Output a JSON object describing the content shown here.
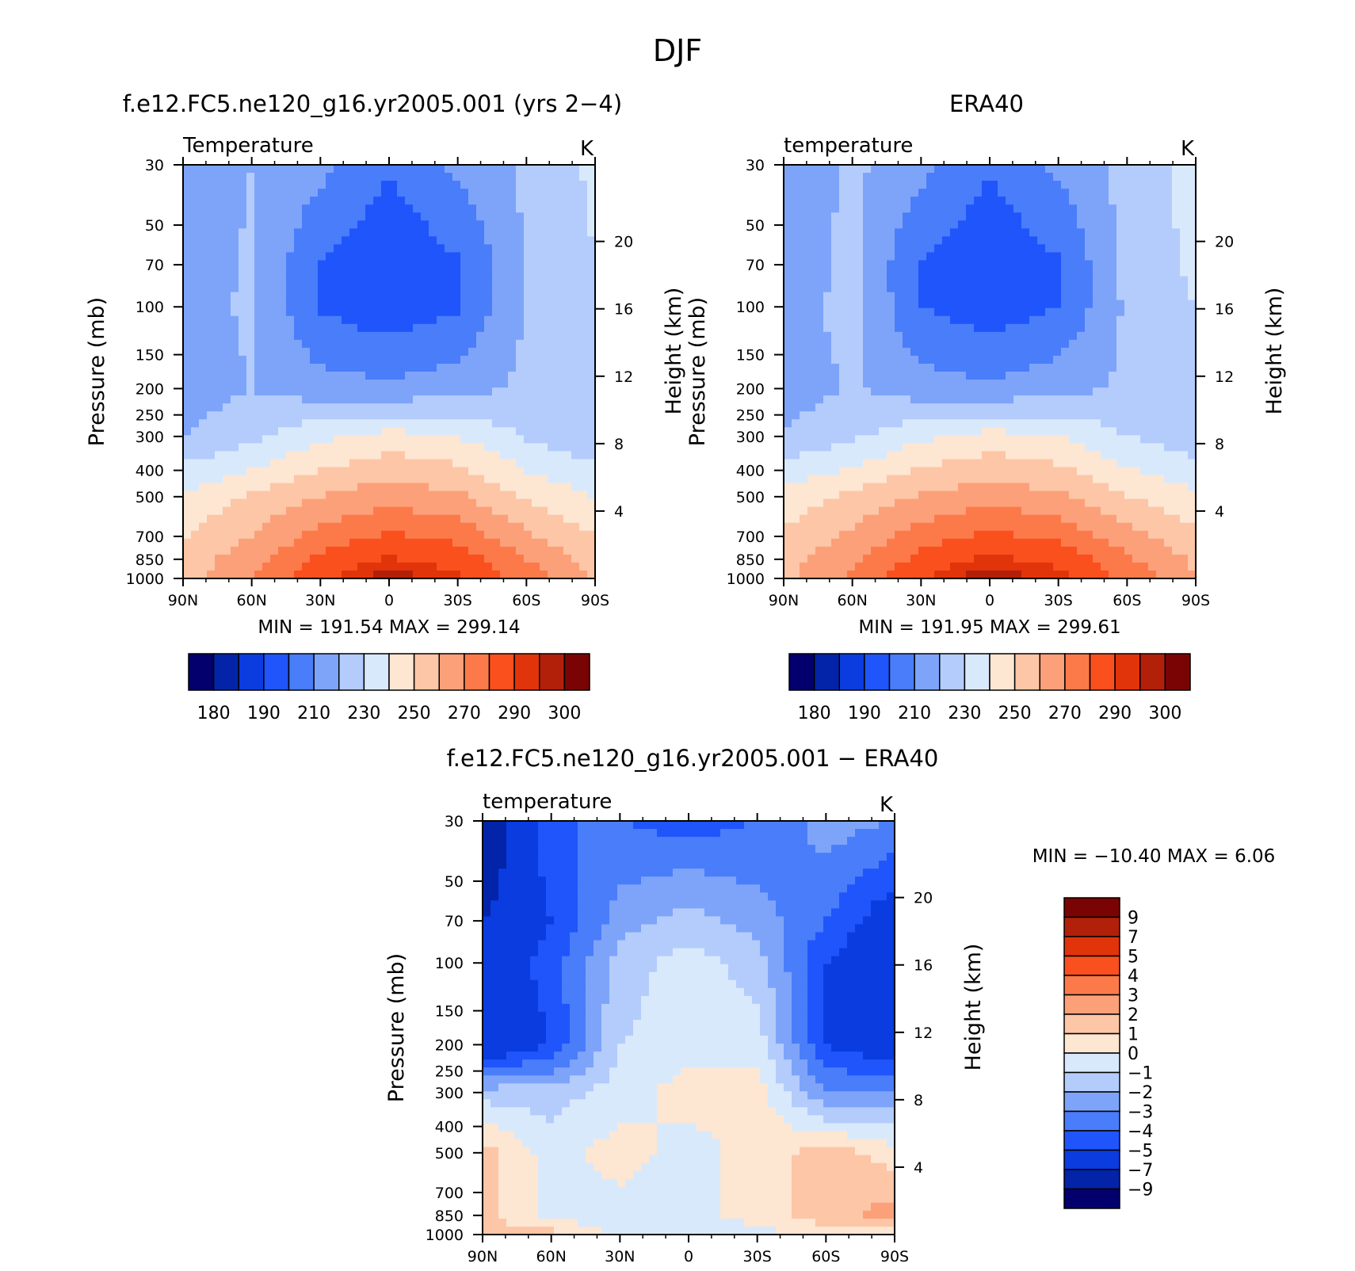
{
  "figure_title": "DJF",
  "panel_top_left": {
    "title": "f.e12.FC5.ne120_g16.yr2005.001 (yrs 2−4)",
    "variable_label": "Temperature",
    "units": "K",
    "ylabel_left": "Pressure (mb)",
    "ylabel_right": "Height (km)",
    "min_max_text": "MIN =  191.54   MAX =  299.14"
  },
  "panel_top_right": {
    "title": "ERA40",
    "variable_label": "temperature",
    "units": "K",
    "ylabel_left": "Pressure (mb)",
    "ylabel_right": "Height (km)",
    "min_max_text": "MIN =  191.95   MAX =  299.61"
  },
  "panel_bottom": {
    "title": "f.e12.FC5.ne120_g16.yr2005.001 − ERA40",
    "variable_label": "temperature",
    "units": "K",
    "ylabel_left": "Pressure (mb)",
    "ylabel_right": "Height (km)",
    "min_max_text": "MIN = −10.40    MAX =     6.06"
  },
  "chart_data": [
    {
      "type": "heatmap",
      "title": "f.e12.FC5.ne120_g16.yr2005.001 (yrs 2−4)",
      "variable": "Temperature",
      "units": "K",
      "x_categories": [
        "90N",
        "60N",
        "30N",
        "0",
        "30S",
        "60S",
        "90S"
      ],
      "x_values_lat": [
        90,
        60,
        30,
        0,
        -30,
        -60,
        -90
      ],
      "pressure_levels_mb": [
        30,
        50,
        70,
        100,
        150,
        200,
        250,
        300,
        400,
        500,
        700,
        850,
        1000
      ],
      "height_ticks_km": [
        4,
        8,
        12,
        16,
        20
      ],
      "min": 191.54,
      "max": 299.14,
      "colorbar_ticks": [
        "180",
        "190",
        "210",
        "230",
        "250",
        "270",
        "290",
        "300"
      ],
      "colorbar_colors": [
        "#03006d",
        "#0324a8",
        "#0a3ce0",
        "#1f55fb",
        "#4a7dfa",
        "#7ea4fa",
        "#b3ccfb",
        "#d9e9fc",
        "#fde6d2",
        "#fdc6a6",
        "#fca07a",
        "#fc7a4a",
        "#f9501e",
        "#e2340a",
        "#b3200a",
        "#7a0404"
      ],
      "field_lat_ticks": [
        90,
        60,
        30,
        0,
        -30,
        -60,
        -90
      ],
      "field_pressure_rows": [
        30,
        70,
        100,
        200,
        300,
        500,
        850,
        1000
      ],
      "field_values": [
        [
          212,
          220,
          213,
          201,
          212,
          222,
          232
        ],
        [
          212,
          222,
          199,
          191.54,
          199,
          221,
          230
        ],
        [
          215,
          222,
          199,
          193,
          199,
          221,
          228
        ],
        [
          214,
          220,
          214,
          212,
          216,
          222,
          220
        ],
        [
          220,
          227,
          238,
          244,
          240,
          229,
          222
        ],
        [
          242,
          251,
          260,
          266,
          262,
          248,
          240
        ],
        [
          254,
          266,
          282,
          291,
          286,
          270,
          256
        ],
        [
          256,
          270,
          288,
          299.14,
          292,
          276,
          258
        ]
      ]
    },
    {
      "type": "heatmap",
      "title": "ERA40",
      "variable": "temperature",
      "units": "K",
      "x_categories": [
        "90N",
        "60N",
        "30N",
        "0",
        "30S",
        "60S",
        "90S"
      ],
      "x_values_lat": [
        90,
        60,
        30,
        0,
        -30,
        -60,
        -90
      ],
      "pressure_levels_mb": [
        30,
        50,
        70,
        100,
        150,
        200,
        250,
        300,
        400,
        500,
        700,
        850,
        1000
      ],
      "height_ticks_km": [
        4,
        8,
        12,
        16,
        20
      ],
      "min": 191.95,
      "max": 299.61,
      "colorbar_ticks": [
        "180",
        "190",
        "210",
        "230",
        "250",
        "270",
        "290",
        "300"
      ],
      "colorbar_colors": [
        "#03006d",
        "#0324a8",
        "#0a3ce0",
        "#1f55fb",
        "#4a7dfa",
        "#7ea4fa",
        "#b3ccfb",
        "#d9e9fc",
        "#fde6d2",
        "#fdc6a6",
        "#fca07a",
        "#fc7a4a",
        "#f9501e",
        "#e2340a",
        "#b3200a",
        "#7a0404"
      ],
      "field_lat_ticks": [
        90,
        60,
        30,
        0,
        -30,
        -60,
        -90
      ],
      "field_pressure_rows": [
        30,
        70,
        100,
        200,
        300,
        500,
        850,
        1000
      ],
      "field_values": [
        [
          212,
          222,
          213,
          201,
          212,
          224,
          234
        ],
        [
          213,
          223,
          199,
          191.95,
          199,
          223,
          232
        ],
        [
          216,
          223,
          200,
          194,
          200,
          222,
          230
        ],
        [
          215,
          221,
          214,
          212,
          216,
          222,
          223
        ],
        [
          221,
          228,
          238,
          244,
          240,
          230,
          224
        ],
        [
          244,
          252,
          261,
          266,
          262,
          250,
          242
        ],
        [
          256,
          268,
          283,
          292,
          287,
          272,
          258
        ],
        [
          258,
          272,
          290,
          299.61,
          293,
          278,
          260
        ]
      ]
    },
    {
      "type": "heatmap",
      "title": "f.e12.FC5.ne120_g16.yr2005.001 − ERA40",
      "variable": "temperature",
      "units": "K",
      "x_categories": [
        "90N",
        "60N",
        "30N",
        "0",
        "30S",
        "60S",
        "90S"
      ],
      "x_values_lat": [
        90,
        60,
        30,
        0,
        -30,
        -60,
        -90
      ],
      "pressure_levels_mb": [
        30,
        50,
        70,
        100,
        150,
        200,
        250,
        300,
        400,
        500,
        700,
        850,
        1000
      ],
      "height_ticks_km": [
        4,
        8,
        12,
        16,
        20
      ],
      "min": -10.4,
      "max": 6.06,
      "colorbar_ticks": [
        "9",
        "7",
        "5",
        "4",
        "3",
        "2",
        "1",
        "0",
        "−1",
        "−2",
        "−3",
        "−4",
        "−5",
        "−7",
        "−9"
      ],
      "colorbar_colors": [
        "#7a0404",
        "#b3200a",
        "#e2340a",
        "#f9501e",
        "#fc7a4a",
        "#fca07a",
        "#fdc6a6",
        "#fde6d2",
        "#d9e9fc",
        "#b3ccfb",
        "#7ea4fa",
        "#4a7dfa",
        "#1f55fb",
        "#0a3ce0",
        "#0324a8",
        "#03006d"
      ],
      "field_lat_ticks": [
        90,
        60,
        30,
        0,
        -30,
        -60,
        -90
      ],
      "field_pressure_rows": [
        30,
        70,
        100,
        200,
        300,
        500,
        850,
        1000
      ],
      "field_values": [
        [
          -9,
          -4,
          -4,
          -4.5,
          -4,
          -2.5,
          -3
        ],
        [
          -7,
          -5,
          -2.5,
          -1.5,
          -2.5,
          -4,
          -6
        ],
        [
          -6,
          -4.5,
          -1.5,
          -0.5,
          -1.5,
          -5,
          -6.5
        ],
        [
          -6.5,
          -5,
          -1,
          -0.5,
          -0.5,
          -5,
          -6
        ],
        [
          -1.5,
          -1.5,
          -0.5,
          0.5,
          0.5,
          -3,
          -3
        ],
        [
          1.5,
          -0.5,
          0.5,
          -0.5,
          0.5,
          1.5,
          0.5
        ],
        [
          1.5,
          -0.5,
          -0.5,
          -0.5,
          0.5,
          1.5,
          2.5
        ],
        [
          1.5,
          1.5,
          -0.5,
          -0.5,
          -0.5,
          0.5,
          0.5
        ]
      ]
    }
  ]
}
